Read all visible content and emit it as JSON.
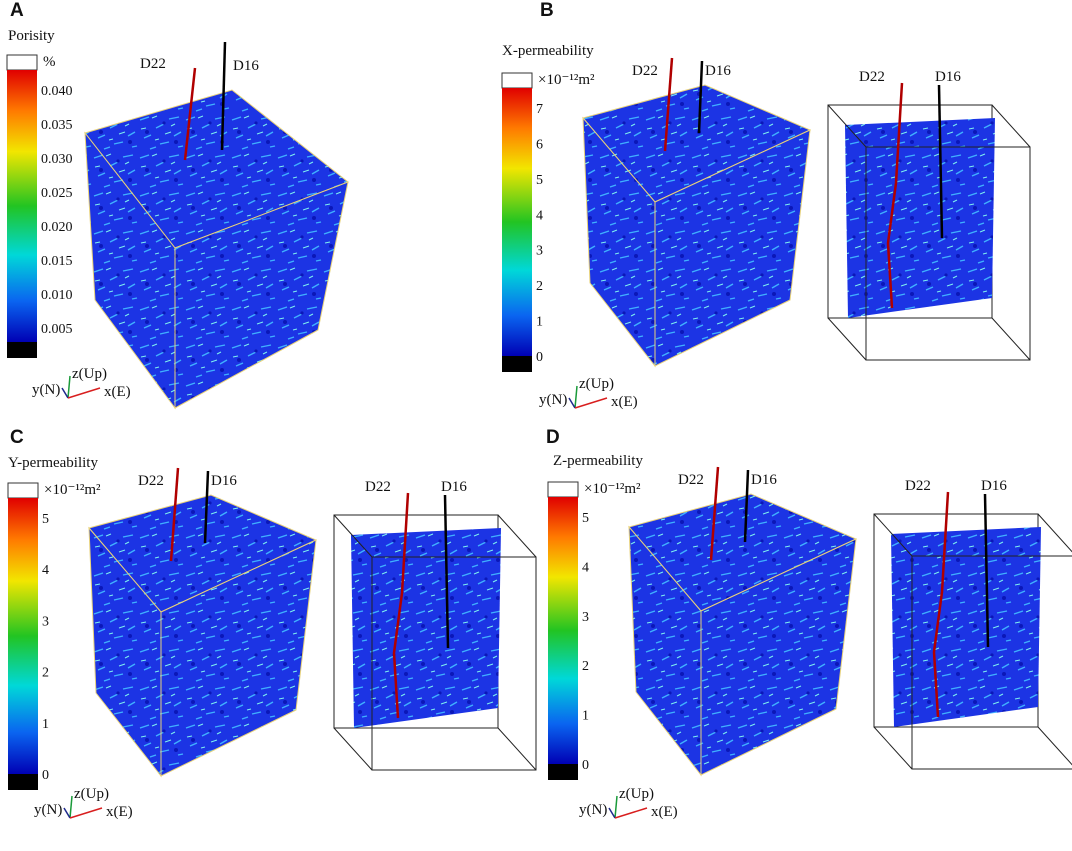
{
  "panels": [
    {
      "letter": "A",
      "title": "Porisity",
      "unit": "%",
      "ticks": [
        "0.040",
        "0.035",
        "0.030",
        "0.025",
        "0.020",
        "0.015",
        "0.010",
        "0.005"
      ],
      "wells": [
        "D22",
        "D16"
      ],
      "axes": [
        "z(Up)",
        "y(N)",
        "x(E)"
      ]
    },
    {
      "letter": "B",
      "title": "X-permeability",
      "unit": "×10⁻¹²m²",
      "ticks": [
        "7",
        "6",
        "5",
        "4",
        "3",
        "2",
        "1",
        "0"
      ],
      "wells": [
        "D22",
        "D16"
      ],
      "axes": [
        "z(Up)",
        "y(N)",
        "x(E)"
      ]
    },
    {
      "letter": "C",
      "title": "Y-permeability",
      "unit": "×10⁻¹²m²",
      "ticks": [
        "5",
        "4",
        "3",
        "2",
        "1",
        "0"
      ],
      "wells": [
        "D22",
        "D16"
      ],
      "axes": [
        "z(Up)",
        "y(N)",
        "x(E)"
      ]
    },
    {
      "letter": "D",
      "title": "Z-permeability",
      "unit": "×10⁻¹²m²",
      "ticks": [
        "5",
        "4",
        "3",
        "2",
        "1",
        "0"
      ],
      "wells": [
        "D22",
        "D16"
      ],
      "axes": [
        "z(Up)",
        "y(N)",
        "x(E)"
      ]
    }
  ]
}
